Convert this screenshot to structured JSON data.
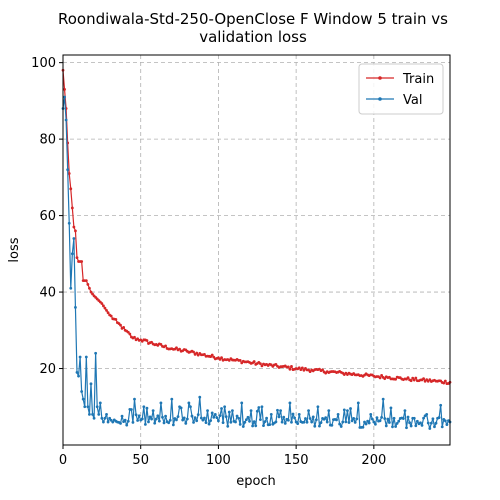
{
  "chart_data": {
    "type": "line",
    "title": "Roondiwala-Std-250-OpenClose F Window 5 train vs validation loss",
    "title_lines": [
      "Roondiwala-Std-250-OpenClose F Window 5 train vs",
      "validation loss"
    ],
    "xlabel": "epoch",
    "ylabel": "loss",
    "xlim": [
      0,
      249
    ],
    "ylim": [
      0,
      102
    ],
    "xticks": [
      0,
      50,
      100,
      150,
      200
    ],
    "yticks": [
      20,
      40,
      60,
      80,
      100
    ],
    "grid": true,
    "legend_position": "top-right",
    "series": [
      {
        "name": "Train",
        "color": "#d62728",
        "anchors": [
          [
            0,
            98
          ],
          [
            1,
            93
          ],
          [
            2,
            88
          ],
          [
            3,
            79
          ],
          [
            4,
            71
          ],
          [
            5,
            67
          ],
          [
            6,
            62
          ],
          [
            7,
            57
          ],
          [
            8,
            56
          ],
          [
            9,
            49
          ],
          [
            10,
            48
          ],
          [
            12,
            48
          ],
          [
            13,
            43
          ],
          [
            15,
            43
          ],
          [
            16,
            42
          ],
          [
            18,
            40
          ],
          [
            20,
            39
          ],
          [
            25,
            37
          ],
          [
            30,
            34
          ],
          [
            35,
            32
          ],
          [
            40,
            30
          ],
          [
            45,
            28
          ],
          [
            50,
            27.5
          ],
          [
            60,
            26.3
          ],
          [
            70,
            25.2
          ],
          [
            80,
            24.5
          ],
          [
            90,
            23.6
          ],
          [
            100,
            22.8
          ],
          [
            110,
            22.2
          ],
          [
            120,
            21.6
          ],
          [
            130,
            21
          ],
          [
            140,
            20.5
          ],
          [
            150,
            20
          ],
          [
            160,
            19.6
          ],
          [
            170,
            19.2
          ],
          [
            180,
            18.8
          ],
          [
            190,
            18.4
          ],
          [
            200,
            18
          ],
          [
            210,
            17.7
          ],
          [
            220,
            17.3
          ],
          [
            230,
            17
          ],
          [
            240,
            16.7
          ],
          [
            249,
            16.4
          ]
        ],
        "noise": 0.45
      },
      {
        "name": "Val",
        "color": "#1f77b4",
        "anchors": [
          [
            0,
            88
          ],
          [
            1,
            91
          ],
          [
            2,
            85
          ],
          [
            3,
            72
          ],
          [
            4,
            58
          ],
          [
            5,
            41
          ],
          [
            6,
            50
          ],
          [
            7,
            54
          ],
          [
            8,
            36
          ],
          [
            9,
            19
          ],
          [
            10,
            18
          ],
          [
            11,
            23
          ],
          [
            12,
            14
          ],
          [
            13,
            12
          ],
          [
            14,
            10
          ],
          [
            15,
            23
          ],
          [
            16,
            10
          ],
          [
            17,
            8
          ],
          [
            18,
            16
          ],
          [
            19,
            8
          ],
          [
            20,
            7
          ],
          [
            21,
            24
          ],
          [
            22,
            10
          ],
          [
            23,
            8
          ],
          [
            24,
            11
          ],
          [
            25,
            7
          ],
          [
            26,
            6
          ],
          [
            27,
            7
          ],
          [
            28,
            8
          ],
          [
            29,
            6
          ],
          [
            30,
            7
          ],
          [
            32,
            6
          ],
          [
            35,
            6
          ],
          [
            40,
            6.5
          ],
          [
            50,
            6.5
          ],
          [
            60,
            6.8
          ],
          [
            70,
            6.5
          ],
          [
            80,
            6.8
          ],
          [
            90,
            6.5
          ],
          [
            100,
            6.3
          ],
          [
            110,
            6.2
          ],
          [
            120,
            6.2
          ],
          [
            130,
            6.1
          ],
          [
            140,
            6.1
          ],
          [
            150,
            6
          ],
          [
            160,
            6
          ],
          [
            170,
            6
          ],
          [
            180,
            6
          ],
          [
            190,
            6
          ],
          [
            200,
            6
          ],
          [
            210,
            5.9
          ],
          [
            220,
            5.9
          ],
          [
            230,
            5.8
          ],
          [
            240,
            5.7
          ],
          [
            249,
            6
          ]
        ],
        "spikes": [
          [
            46,
            12
          ],
          [
            52,
            10
          ],
          [
            58,
            9
          ],
          [
            63,
            11
          ],
          [
            70,
            12
          ],
          [
            75,
            10
          ],
          [
            81,
            11
          ],
          [
            88,
            12.5
          ],
          [
            93,
            9
          ],
          [
            98,
            8
          ],
          [
            104,
            10
          ],
          [
            109,
            9
          ],
          [
            115,
            11
          ],
          [
            121,
            9
          ],
          [
            128,
            10
          ],
          [
            134,
            8
          ],
          [
            140,
            9
          ],
          [
            146,
            11
          ],
          [
            152,
            8
          ],
          [
            158,
            9
          ],
          [
            164,
            10
          ],
          [
            171,
            9
          ],
          [
            177,
            8
          ],
          [
            183,
            9
          ],
          [
            190,
            11
          ],
          [
            198,
            8
          ],
          [
            206,
            12
          ],
          [
            213,
            7
          ],
          [
            220,
            9
          ],
          [
            226,
            7
          ],
          [
            234,
            8
          ],
          [
            241,
            7
          ]
        ],
        "noise": 1.6
      }
    ]
  }
}
